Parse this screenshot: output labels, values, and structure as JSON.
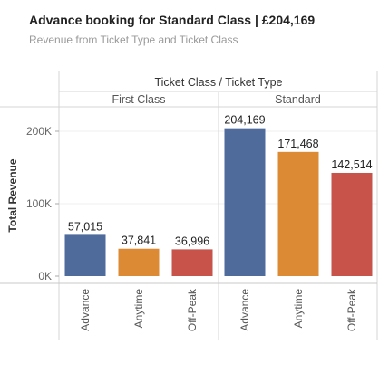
{
  "header": {
    "title": "Advance booking for Standard Class | £204,169",
    "subtitle": "Revenue from Ticket Type and Ticket Class"
  },
  "chart_data": {
    "type": "bar",
    "title": "Advance booking for Standard Class | £204,169",
    "subtitle": "Revenue from Ticket Type and Ticket Class",
    "column_header": "Ticket Class / Ticket Type",
    "ylabel": "Total Revenue",
    "ylim": [
      0,
      230000
    ],
    "yticks": [
      0,
      100000,
      200000
    ],
    "ytick_labels": [
      "0K",
      "100K",
      "200K"
    ],
    "grid": true,
    "panels": [
      {
        "name": "First Class",
        "categories": [
          "Advance",
          "Anytime",
          "Off-Peak"
        ],
        "values": [
          57015,
          37841,
          36996
        ],
        "value_labels": [
          "57,015",
          "37,841",
          "36,996"
        ]
      },
      {
        "name": "Standard",
        "categories": [
          "Advance",
          "Anytime",
          "Off-Peak"
        ],
        "values": [
          204169,
          171468,
          142514
        ],
        "value_labels": [
          "204,169",
          "171,468",
          "142,514"
        ]
      }
    ],
    "colors": {
      "Advance": "#4e6b9c",
      "Anytime": "#dd8a35",
      "Off-Peak": "#c7534b"
    }
  }
}
